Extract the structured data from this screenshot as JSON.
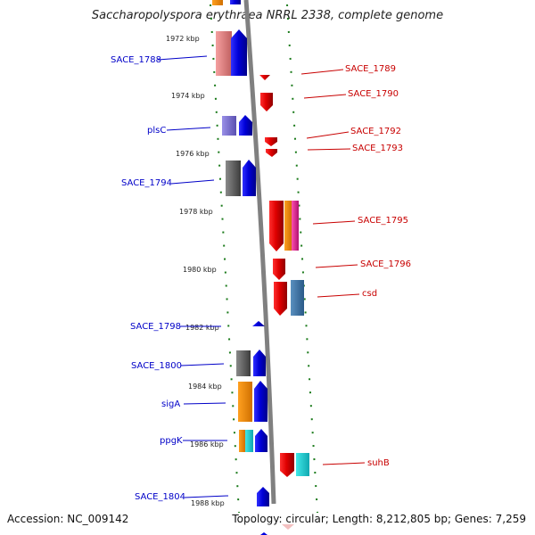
{
  "title": "Saccharopolyspora erythraea NRRL 2338, complete genome",
  "footer": {
    "accession": "Accession: NC_009142",
    "topology": "Topology: circular; Length: 8,212,805 bp; Genes: 7,259"
  },
  "scale_labels": [
    "1972 kbp",
    "1974 kbp",
    "1976 kbp",
    "1978 kbp",
    "1980 kbp",
    "1982 kbp",
    "1984 kbp",
    "1986 kbp",
    "1988 kbp"
  ],
  "left_genes": [
    "SACE_1788",
    "plsC",
    "SACE_1794",
    "SACE_1798",
    "SACE_1800",
    "sigA",
    "ppgK",
    "SACE_1804"
  ],
  "right_genes": [
    "SACE_1789",
    "SACE_1790",
    "SACE_1792",
    "SACE_1793",
    "SACE_1795",
    "SACE_1796",
    "csd",
    "suhB"
  ],
  "colors": {
    "forward_strand": "#0000e0",
    "reverse_strand": "#e00000",
    "backbone": "#808080",
    "dotted_guide": "#1a7a1a"
  }
}
